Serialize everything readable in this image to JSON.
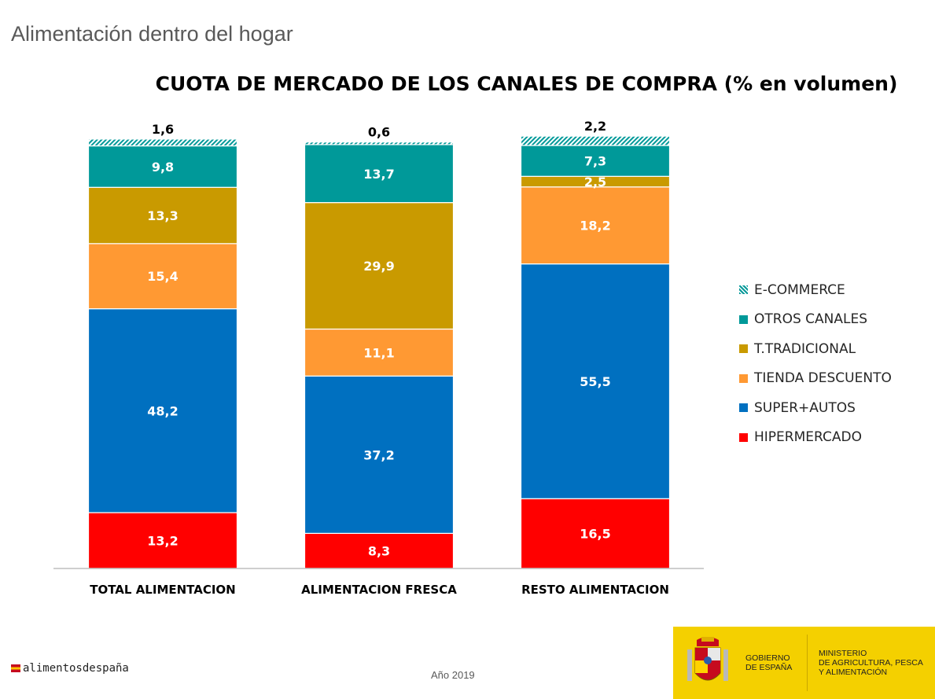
{
  "header": {
    "title": "Alimentación dentro del hogar"
  },
  "chart_data": {
    "type": "bar",
    "stacked": true,
    "title": "CUOTA DE MERCADO DE LOS CANALES DE COMPRA (% en volumen)",
    "categories": [
      "TOTAL ALIMENTACION",
      "ALIMENTACION FRESCA",
      "RESTO ALIMENTACION"
    ],
    "series": [
      {
        "name": "HIPERMERCADO",
        "color": "#ff0000",
        "values": [
          13.2,
          8.3,
          16.5
        ],
        "labels": [
          "13,2",
          "8,3",
          "16,5"
        ]
      },
      {
        "name": "SUPER+AUTOS",
        "color": "#0070c0",
        "values": [
          48.2,
          37.2,
          55.5
        ],
        "labels": [
          "48,2",
          "37,2",
          "55,5"
        ]
      },
      {
        "name": "TIENDA DESCUENTO",
        "color": "#ff9933",
        "values": [
          15.4,
          11.1,
          18.2
        ],
        "labels": [
          "15,4",
          "11,1",
          "18,2"
        ]
      },
      {
        "name": "T.TRADICIONAL",
        "color": "#c99a00",
        "values": [
          13.3,
          29.9,
          2.5
        ],
        "labels": [
          "13,3",
          "29,9",
          "2,5"
        ]
      },
      {
        "name": "OTROS CANALES",
        "color": "#009999",
        "values": [
          9.8,
          13.7,
          7.3
        ],
        "labels": [
          "9,8",
          "13,7",
          "7,3"
        ]
      },
      {
        "name": "E-COMMERCE",
        "color": "#009999",
        "pattern": "hatched",
        "values": [
          1.6,
          0.6,
          2.2
        ],
        "labels": [
          "1,6",
          "0,6",
          "2,2"
        ]
      }
    ],
    "legend_order": [
      "E-COMMERCE",
      "OTROS CANALES",
      "T.TRADICIONAL",
      "TIENDA DESCUENTO",
      "SUPER+AUTOS",
      "HIPERMERCADO"
    ],
    "legend_position": "right",
    "ylim": [
      0,
      100
    ],
    "grid": false
  },
  "footer": {
    "logo_text": "alimentosdespaña",
    "year": "Año 2019",
    "gov_line1": "GOBIERNO",
    "gov_line2": "DE ESPAÑA",
    "ministry_line1": "MINISTERIO",
    "ministry_line2": "DE AGRICULTURA, PESCA",
    "ministry_line3": "Y ALIMENTACIÓN"
  }
}
